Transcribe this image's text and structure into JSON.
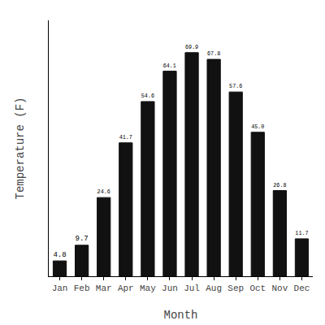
{
  "chart_data": {
    "type": "bar",
    "categories": [
      "Jan",
      "Feb",
      "Mar",
      "Apr",
      "May",
      "Jun",
      "Jul",
      "Aug",
      "Sep",
      "Oct",
      "Nov",
      "Dec"
    ],
    "values": [
      4.8,
      9.7,
      24.6,
      41.7,
      54.6,
      64.1,
      69.9,
      67.8,
      57.6,
      45.0,
      26.8,
      11.7
    ],
    "value_labels": [
      "4.8",
      "9.7",
      "24.6",
      "41.7",
      "54.6",
      "64.1",
      "69.9",
      "67.8",
      "57.6",
      "45.0",
      "26.8",
      "11.7"
    ],
    "color": "#111111",
    "xlabel": "Month",
    "ylabel": "Temperature (F)",
    "ylim": [
      0,
      80
    ],
    "data_labels": true,
    "tick_labels": "x",
    "grid": false
  }
}
